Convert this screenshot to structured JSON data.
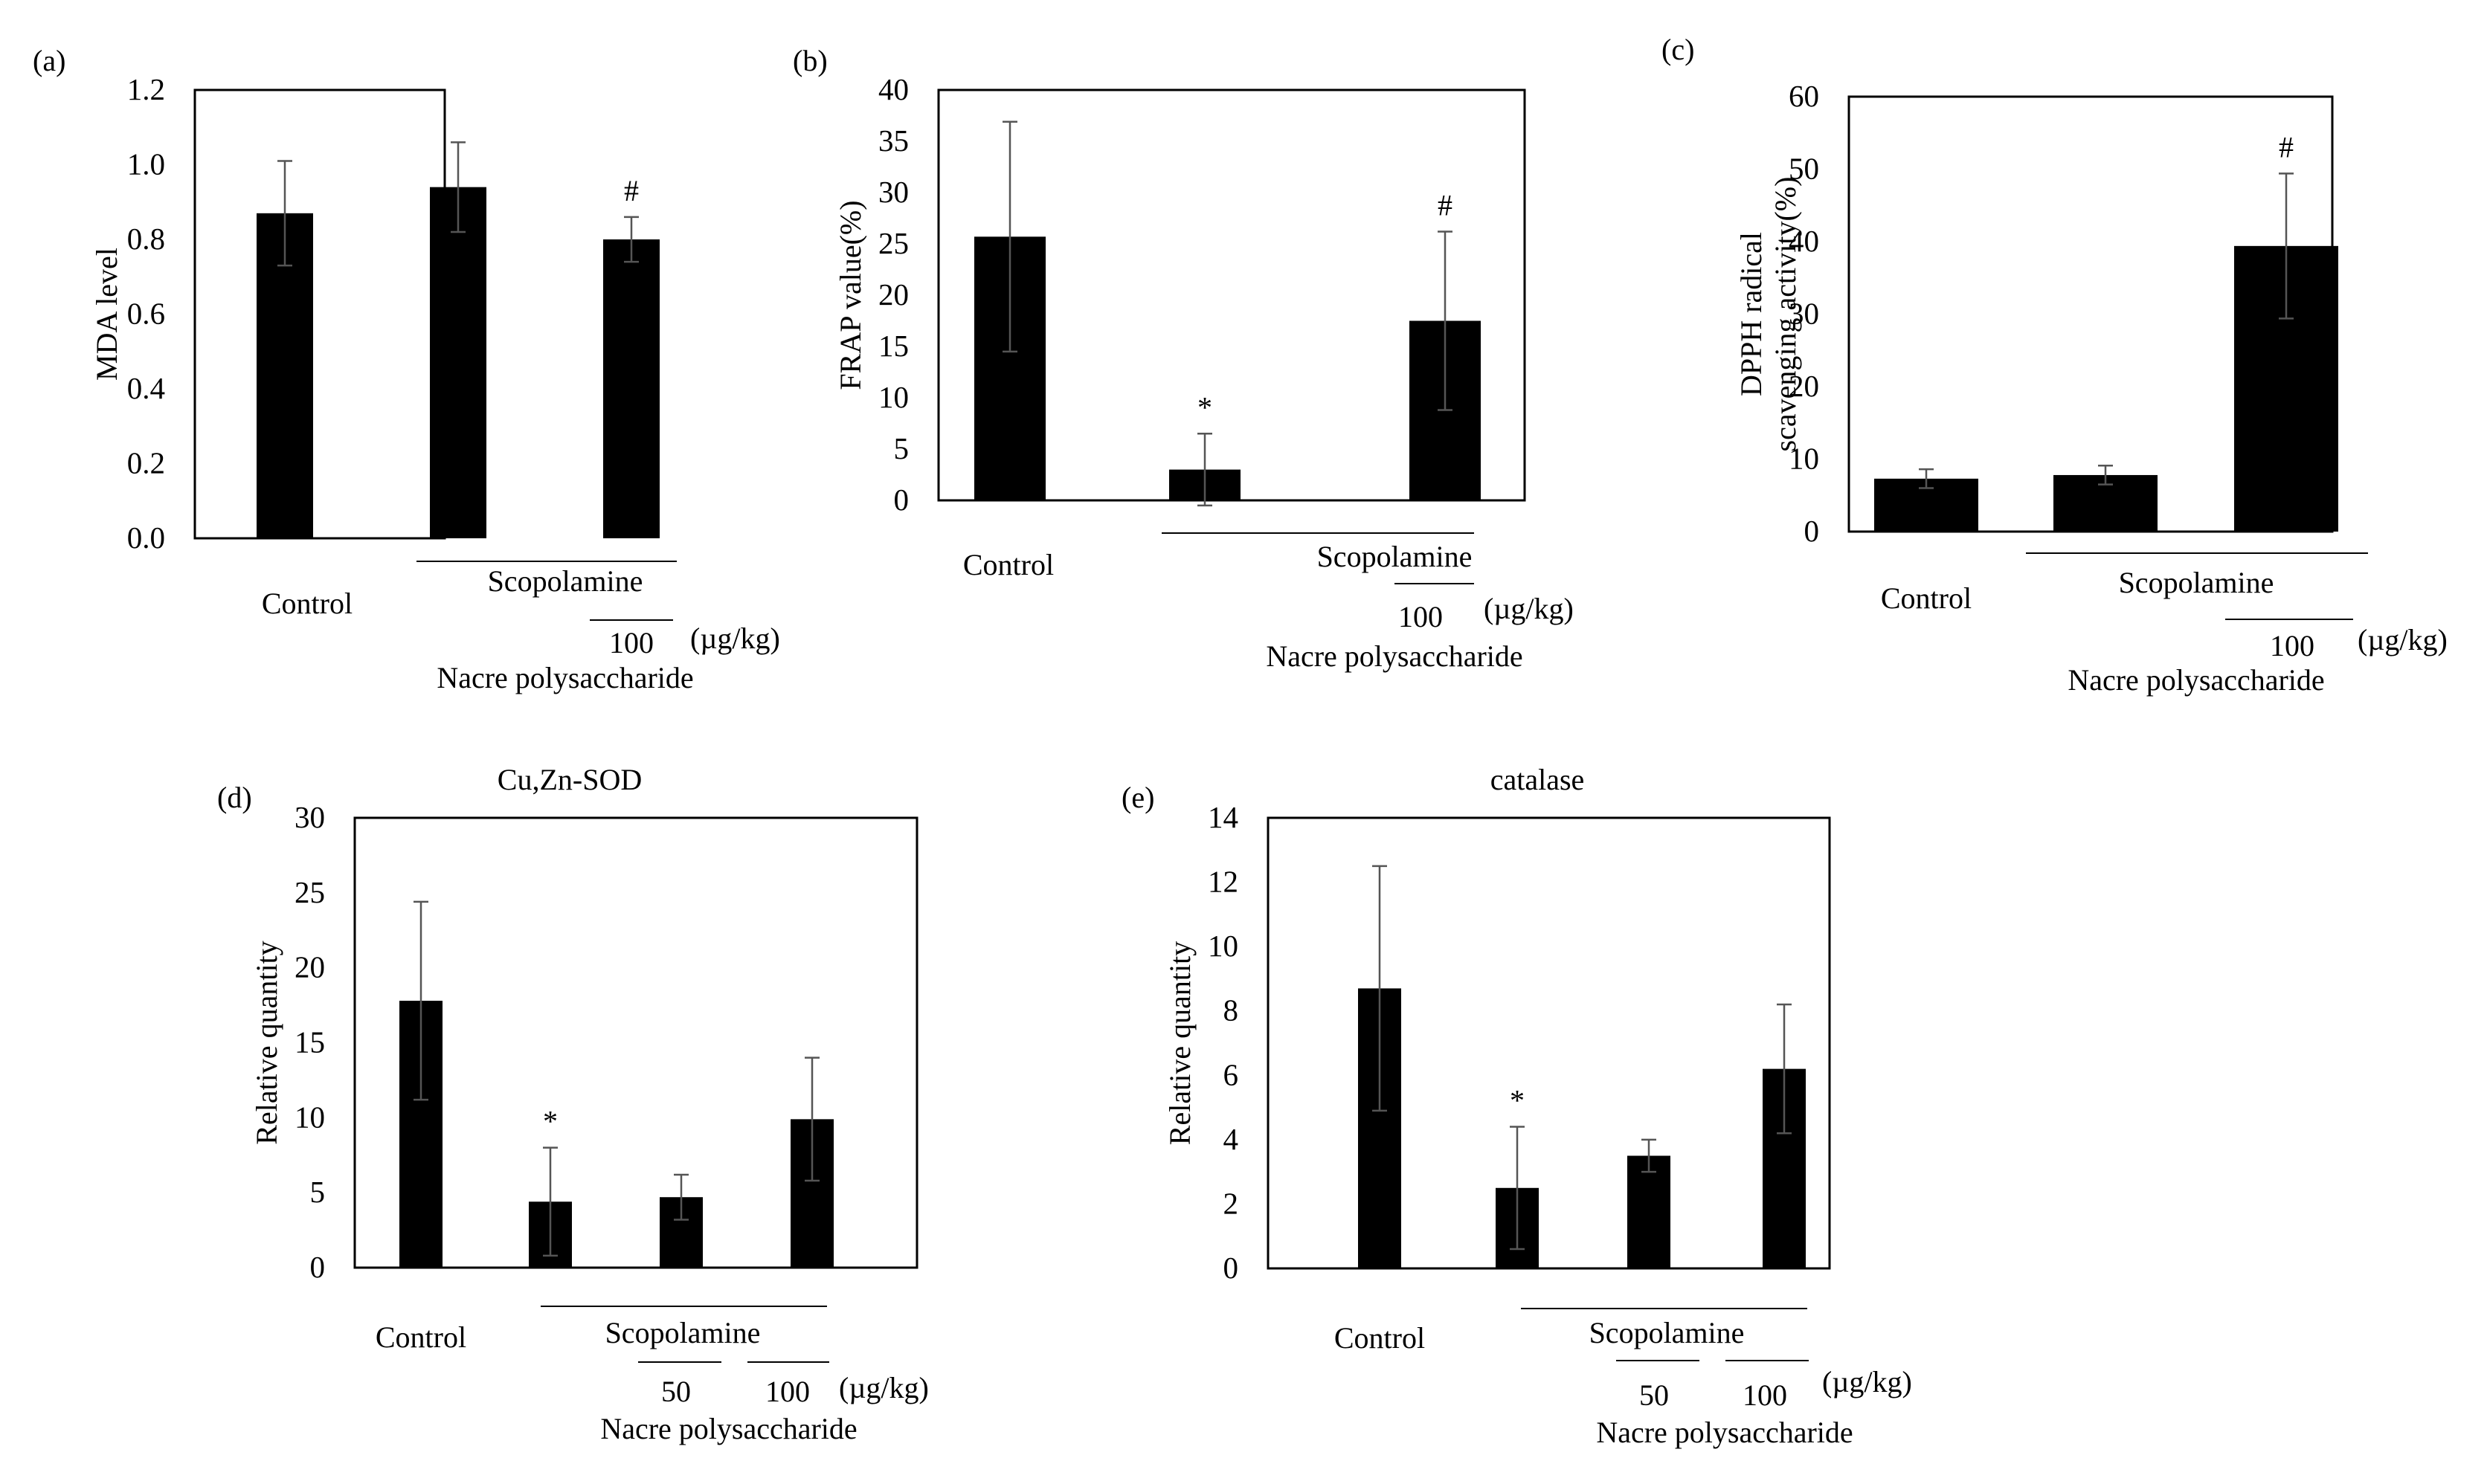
{
  "colors": {
    "bar": "#000000",
    "error_bar": "#555555",
    "frame": "#000000"
  },
  "chart_data": [
    {
      "panel": "(a)",
      "type": "bar",
      "title": "",
      "ylabel": "MDA level",
      "ylim": [
        0,
        1.2
      ],
      "yticks": [
        "0.0",
        "0.2",
        "0.4",
        "0.6",
        "0.8",
        "1.0",
        "1.2"
      ],
      "categories": [
        "Control",
        "Scopolamine",
        "Scopolamine + Nacre polysaccharide 100"
      ],
      "values": [
        0.87,
        0.94,
        0.8
      ],
      "errors": [
        0.14,
        0.12,
        0.06
      ],
      "marks": [
        "",
        "",
        "#"
      ],
      "labels": {
        "control": "Control",
        "treatment": "Scopolamine",
        "doses": [
          "100"
        ],
        "unit": "(µg/kg)",
        "compound": "Nacre polysaccharide"
      }
    },
    {
      "panel": "(b)",
      "type": "bar",
      "title": "",
      "ylabel": "FRAP value(%)",
      "ylim": [
        0,
        40
      ],
      "yticks": [
        "0",
        "5",
        "10",
        "15",
        "20",
        "25",
        "30",
        "35",
        "40"
      ],
      "categories": [
        "Control",
        "Scopolamine",
        "Scopolamine + Nacre polysaccharide 100"
      ],
      "values": [
        25.7,
        3.0,
        17.5
      ],
      "errors": [
        11.2,
        3.5,
        8.7
      ],
      "marks": [
        "",
        "*",
        "#"
      ],
      "labels": {
        "control": "Control",
        "treatment": "Scopolamine",
        "doses": [
          "100"
        ],
        "unit": "(µg/kg)",
        "compound": "Nacre polysaccharide"
      }
    },
    {
      "panel": "(c)",
      "type": "bar",
      "title": "",
      "ylabel": [
        "DPPH radical",
        "scavenging activity(%)"
      ],
      "ylim": [
        0,
        60
      ],
      "yticks": [
        "0",
        "10",
        "20",
        "30",
        "40",
        "50",
        "60"
      ],
      "categories": [
        "Control",
        "Scopolamine",
        "Scopolamine + Nacre polysaccharide 100"
      ],
      "values": [
        7.3,
        7.8,
        39.4
      ],
      "errors": [
        1.3,
        1.3,
        10.0
      ],
      "marks": [
        "",
        "",
        "#"
      ],
      "labels": {
        "control": "Control",
        "treatment": "Scopolamine",
        "doses": [
          "100"
        ],
        "unit": "(µg/kg)",
        "compound": "Nacre polysaccharide"
      }
    },
    {
      "panel": "(d)",
      "type": "bar",
      "title": "Cu,Zn-SOD",
      "ylabel": "Relative quantity",
      "ylim": [
        0,
        30
      ],
      "yticks": [
        "0",
        "5",
        "10",
        "15",
        "20",
        "25",
        "30"
      ],
      "categories": [
        "Control",
        "Scopolamine",
        "Scopolamine + Nacre polysaccharide 50",
        "Scopolamine + Nacre polysaccharide 100"
      ],
      "values": [
        17.8,
        4.4,
        4.7,
        9.9
      ],
      "errors": [
        6.6,
        3.6,
        1.5,
        4.1
      ],
      "marks": [
        "",
        "*",
        "",
        ""
      ],
      "labels": {
        "control": "Control",
        "treatment": "Scopolamine",
        "doses": [
          "50",
          "100"
        ],
        "unit": "(µg/kg)",
        "compound": "Nacre polysaccharide"
      }
    },
    {
      "panel": "(e)",
      "type": "bar",
      "title": "catalase",
      "ylabel": "Relative quantity",
      "ylim": [
        0,
        14
      ],
      "yticks": [
        "0",
        "2",
        "4",
        "6",
        "8",
        "10",
        "12",
        "14"
      ],
      "categories": [
        "Control",
        "Scopolamine",
        "Scopolamine + Nacre polysaccharide 50",
        "Scopolamine + Nacre polysaccharide 100"
      ],
      "values": [
        8.7,
        2.5,
        3.5,
        6.2
      ],
      "errors": [
        3.8,
        1.9,
        0.5,
        2.0
      ],
      "marks": [
        "",
        "*",
        "",
        ""
      ],
      "labels": {
        "control": "Control",
        "treatment": "Scopolamine",
        "doses": [
          "50",
          "100"
        ],
        "unit": "(µg/kg)",
        "compound": "Nacre polysaccharide"
      }
    }
  ]
}
